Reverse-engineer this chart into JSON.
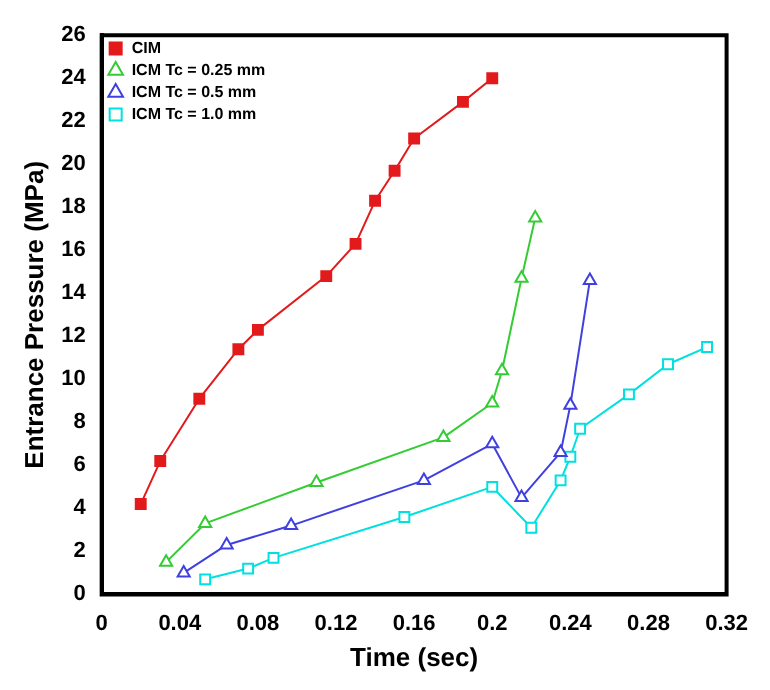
{
  "chart_data": {
    "type": "line",
    "xlabel": "Time (sec)",
    "ylabel": "Entrance Pressure (MPa)",
    "xlim": [
      0,
      0.32
    ],
    "ylim": [
      0,
      26
    ],
    "xticks": [
      0,
      0.04,
      0.08,
      0.12,
      0.16,
      0.2,
      0.24,
      0.28,
      0.32
    ],
    "yticks": [
      0,
      2,
      4,
      6,
      8,
      10,
      12,
      14,
      16,
      18,
      20,
      22,
      24,
      26
    ],
    "grid": false,
    "legend": "top left",
    "line_style": "solid",
    "series": [
      {
        "name": "CIM",
        "color": "#e31a1c",
        "marker": "square",
        "x": [
          0.02,
          0.03,
          0.05,
          0.07,
          0.08,
          0.115,
          0.13,
          0.14,
          0.15,
          0.16,
          0.185,
          0.2
        ],
        "values": [
          4.2,
          6.2,
          9.1,
          11.4,
          12.3,
          14.8,
          16.3,
          18.3,
          19.7,
          21.2,
          22.9,
          24.0
        ]
      },
      {
        "name": "ICM Tc = 0.25 mm",
        "color": "#33cc33",
        "marker": "triangle",
        "x": [
          0.033,
          0.053,
          0.11,
          0.175,
          0.2,
          0.205,
          0.215,
          0.222
        ],
        "values": [
          1.5,
          3.3,
          5.2,
          7.3,
          8.9,
          10.4,
          14.7,
          17.5
        ]
      },
      {
        "name": "ICM Tc = 0.5 mm",
        "color": "#4040e0",
        "marker": "triangle",
        "x": [
          0.042,
          0.064,
          0.097,
          0.165,
          0.2,
          0.215,
          0.235,
          0.24,
          0.25
        ],
        "values": [
          1.0,
          2.3,
          3.2,
          5.3,
          7.0,
          4.5,
          6.6,
          8.8,
          14.6
        ]
      },
      {
        "name": "ICM Tc = 1.0 mm",
        "color": "#00e0e0",
        "marker": "square",
        "x": [
          0.053,
          0.075,
          0.088,
          0.155,
          0.2,
          0.22,
          0.235,
          0.24,
          0.245,
          0.27,
          0.29,
          0.31
        ],
        "values": [
          0.7,
          1.2,
          1.7,
          3.6,
          5.0,
          3.1,
          5.3,
          6.4,
          7.7,
          9.3,
          10.7,
          11.5
        ]
      }
    ]
  }
}
